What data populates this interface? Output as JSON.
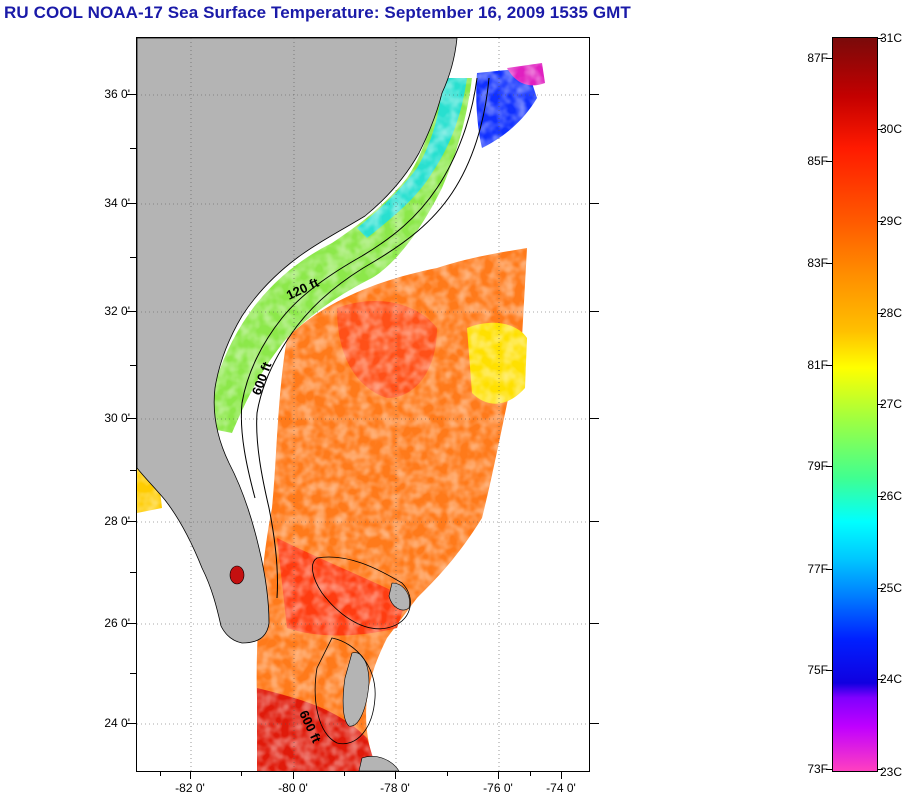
{
  "title": "RU COOL  NOAA-17  Sea Surface Temperature:  September 16, 2009 1535 GMT",
  "latitude_labels": [
    "36 0'",
    "34 0'",
    "32 0'",
    "30 0'",
    "28 0'",
    "26 0'",
    "24 0'"
  ],
  "longitude_labels": [
    "-82 0'",
    "-80 0'",
    "-78 0'",
    "-76 0'",
    "-74 0'"
  ],
  "contour_labels": [
    "120 ft",
    "600 ft",
    "600 ft"
  ],
  "colorbar": {
    "fahrenheit": [
      "87F",
      "85F",
      "83F",
      "81F",
      "79F",
      "77F",
      "75F",
      "73F"
    ],
    "celsius": [
      "31C",
      "30C",
      "29C",
      "28C",
      "27C",
      "26C",
      "25C",
      "24C",
      "23C"
    ]
  },
  "colors": {
    "land": "#b4b4b4",
    "cloud_no_data": "#ffffff",
    "title": "#1a1aa8"
  }
}
